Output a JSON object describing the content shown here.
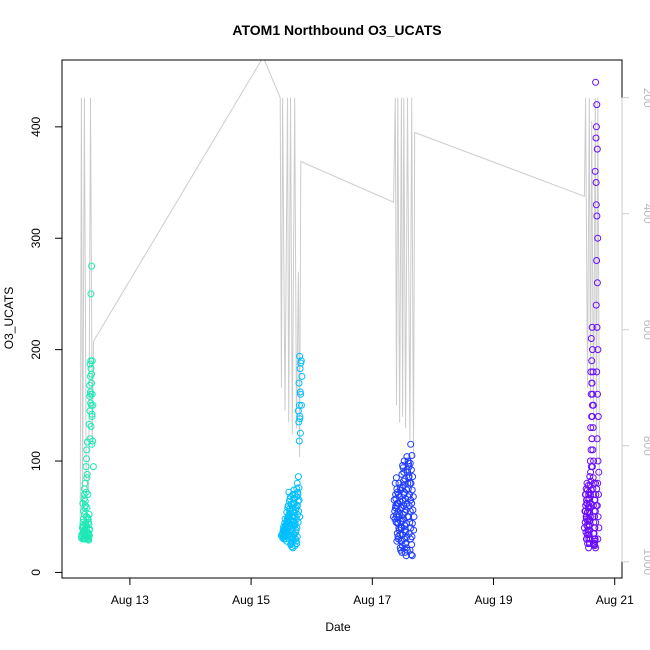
{
  "chart_data": {
    "type": "scatter",
    "title": "ATOM1 Northbound O3_UCATS",
    "xlabel": "Date",
    "ylabel": "O3_UCATS",
    "x_ticks": [
      "Aug 13",
      "Aug 15",
      "Aug 17",
      "Aug 19",
      "Aug 21"
    ],
    "x_tick_days": [
      13,
      15,
      17,
      19,
      21
    ],
    "xlim_days": [
      11.88,
      21.12
    ],
    "ylim": [
      -5,
      460
    ],
    "y_ticks": [
      0,
      100,
      200,
      300,
      400
    ],
    "y2_ticks": [
      200,
      400,
      600,
      800,
      1000
    ],
    "y2lim": [
      1028,
      135
    ],
    "y2_color": "#cccccc",
    "grid": false,
    "legend": "none",
    "series": [
      {
        "color": "#1de9b6",
        "segments": [
          {
            "day_start": 12.2,
            "day_end": 12.4,
            "values": [
              31,
              33,
              30,
              34,
              32,
              36,
              40,
              45,
              38,
              42,
              55,
              62,
              48,
              70,
              35,
              30,
              33,
              41,
              52,
              64,
              75,
              80,
              66,
              58,
              44,
              38,
              34,
              31,
              30,
              33,
              37,
              42,
              50,
              60,
              72,
              85,
              95,
              110,
              117,
              102,
              88,
              70,
              58,
              49,
              41,
              36,
              33,
              32,
              30,
              29,
              31,
              34,
              38,
              45,
              52,
              48,
              43,
              39,
              35,
              33,
              120,
              133,
              145,
              152,
              158,
              162,
              168,
              176,
              183,
              187,
              190,
              178,
              160,
              150,
              142,
              131,
              115,
              250,
              275,
              190,
              170,
              160,
              150,
              140,
              118,
              95
            ]
          }
        ]
      },
      {
        "color": "#00bfff",
        "segments": [
          {
            "day_start": 15.5,
            "day_end": 15.85,
            "values": [
              33,
              35,
              32,
              34,
              38,
              36,
              31,
              30,
              33,
              37,
              40,
              35,
              32,
              36,
              41,
              44,
              38,
              34,
              30,
              28,
              32,
              36,
              39,
              42,
              45,
              48,
              43,
              40,
              37,
              35,
              33,
              36,
              39,
              42,
              46,
              50,
              54,
              58,
              52,
              48,
              45,
              42,
              40,
              44,
              47,
              51,
              55,
              60,
              64,
              68,
              72,
              66,
              61,
              57,
              53,
              49,
              46,
              43,
              41,
              39,
              37,
              35,
              33,
              31,
              29,
              27,
              25,
              23,
              22,
              26,
              30,
              34,
              38,
              42,
              46,
              50,
              54,
              58,
              62,
              66,
              70,
              74,
              70,
              66,
              62,
              58,
              54,
              50,
              46,
              42,
              38,
              34,
              30,
              26,
              24,
              28,
              32,
              36,
              40,
              44,
              48,
              52,
              56,
              60,
              64,
              68,
              72,
              76,
              80,
              86,
              75,
              70,
              65,
              60,
              55,
              50,
              45,
              118,
              125,
              135,
              140,
              145,
              150,
              160,
              170,
              183,
              190,
              194,
              188,
              176,
              162,
              150,
              138
            ]
          }
        ]
      },
      {
        "color": "#1e3cff",
        "segments": [
          {
            "day_start": 17.35,
            "day_end": 17.7,
            "values": [
              50,
              55,
              60,
              65,
              58,
              52,
              48,
              45,
              62,
              70,
              75,
              80,
              85,
              72,
              66,
              60,
              55,
              50,
              45,
              40,
              35,
              30,
              28,
              32,
              38,
              44,
              50,
              56,
              62,
              68,
              74,
              80,
              76,
              70,
              64,
              58,
              52,
              46,
              40,
              34,
              28,
              24,
              20,
              18,
              22,
              28,
              34,
              40,
              46,
              52,
              58,
              64,
              70,
              76,
              82,
              88,
              94,
              100,
              96,
              90,
              84,
              78,
              72,
              66,
              60,
              54,
              48,
              42,
              36,
              30,
              26,
              22,
              18,
              15,
              20,
              26,
              32,
              38,
              44,
              50,
              56,
              62,
              68,
              74,
              80,
              86,
              92,
              98,
              104,
              100,
              95,
              90,
              85,
              80,
              75,
              70,
              65,
              60,
              55,
              50,
              45,
              40,
              35,
              30,
              25,
              20,
              16,
              15,
              115,
              105,
              98,
              92,
              86,
              80,
              74,
              68,
              62,
              56,
              50,
              44,
              38,
              32
            ]
          }
        ]
      },
      {
        "color": "#6a0dff",
        "segments": [
          {
            "day_start": 20.5,
            "day_end": 20.75,
            "values": [
              40,
              45,
              50,
              55,
              60,
              65,
              70,
              75,
              80,
              70,
              62,
              55,
              48,
              42,
              36,
              30,
              26,
              30,
              34,
              38,
              42,
              46,
              50,
              54,
              58,
              62,
              66,
              70,
              74,
              78,
              72,
              66,
              60,
              54,
              48,
              42,
              36,
              30,
              26,
              22,
              26,
              30,
              34,
              38,
              42,
              46,
              50,
              54,
              58,
              62,
              66,
              70,
              74,
              78,
              82,
              86,
              90,
              95,
              100,
              110,
              120,
              130,
              140,
              150,
              160,
              170,
              180,
              190,
              200,
              210,
              220,
              180,
              170,
              160,
              150,
              140,
              130,
              120,
              110,
              100,
              95,
              85,
              80,
              75,
              70,
              65,
              60,
              55,
              50,
              45,
              40,
              35,
              30,
              28,
              26,
              24,
              22,
              25,
              30,
              35,
              40,
              45,
              50,
              55,
              60,
              65,
              70,
              75,
              80,
              330,
              360,
              390,
              420,
              440,
              400,
              380,
              350,
              320,
              300,
              280,
              260,
              240,
              220,
              200,
              180,
              160,
              140,
              120,
              100,
              90,
              80,
              70,
              60,
              50,
              40,
              30
            ]
          }
        ]
      }
    ],
    "pressure_trace": {
      "color": "#cccccc",
      "points": [
        [
          12.18,
          950
        ],
        [
          12.2,
          200
        ],
        [
          12.22,
          900
        ],
        [
          12.25,
          200
        ],
        [
          12.28,
          850
        ],
        [
          12.32,
          880
        ],
        [
          12.35,
          200
        ],
        [
          12.38,
          800
        ],
        [
          12.4,
          620
        ],
        [
          15.2,
          130
        ],
        [
          15.48,
          200
        ],
        [
          15.5,
          700
        ],
        [
          15.52,
          200
        ],
        [
          15.56,
          740
        ],
        [
          15.6,
          200
        ],
        [
          15.62,
          760
        ],
        [
          15.65,
          200
        ],
        [
          15.68,
          780
        ],
        [
          15.72,
          200
        ],
        [
          15.75,
          770
        ],
        [
          15.78,
          500
        ],
        [
          15.8,
          820
        ],
        [
          15.82,
          310
        ],
        [
          17.35,
          380
        ],
        [
          17.38,
          200
        ],
        [
          17.4,
          730
        ],
        [
          17.42,
          200
        ],
        [
          17.45,
          760
        ],
        [
          17.48,
          200
        ],
        [
          17.5,
          750
        ],
        [
          17.52,
          200
        ],
        [
          17.55,
          770
        ],
        [
          17.58,
          200
        ],
        [
          17.62,
          790
        ],
        [
          17.65,
          200
        ],
        [
          17.68,
          820
        ],
        [
          17.7,
          260
        ],
        [
          20.5,
          370
        ],
        [
          20.52,
          200
        ],
        [
          20.55,
          700
        ],
        [
          20.58,
          200
        ],
        [
          20.6,
          720
        ],
        [
          20.62,
          240
        ],
        [
          20.65,
          760
        ],
        [
          20.68,
          200
        ],
        [
          20.7,
          820
        ],
        [
          20.72,
          200
        ],
        [
          20.75,
          860
        ]
      ]
    }
  }
}
